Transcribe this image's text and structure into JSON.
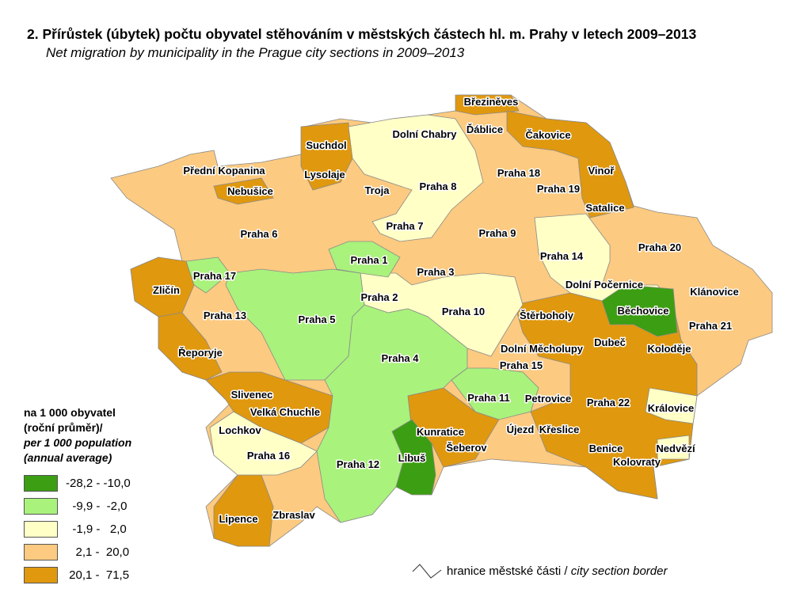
{
  "title": "2. Přírůstek (úbytek) počtu obyvatel stěhováním v městských částech hl. m. Prahy v letech 2009–2013",
  "subtitle": "Net migration by municipality in the Prague city sections in 2009–2013",
  "legend": {
    "heading_cz": "na 1 000 obyvatel",
    "heading_cz2": "(roční průměr)/",
    "heading_en": "per 1 000 population",
    "heading_en2": "(annual average)",
    "classes": [
      {
        "range": "-28,2 - -10,0",
        "color": "#3c9e12"
      },
      {
        "range": "  -9,9 -  -2,0",
        "color": "#a9f27c"
      },
      {
        "range": "  -1,9 -   2,0",
        "color": "#ffffc6"
      },
      {
        "range": "   2,1 -  20,0",
        "color": "#fcca80"
      },
      {
        "range": " 20,1 -  71,5",
        "color": "#e0980e"
      }
    ],
    "border_cz": "hranice městské části",
    "border_sep": " / ",
    "border_en": "city section border"
  },
  "districts": [
    {
      "name": "Březiněves",
      "class": 4
    },
    {
      "name": "Dolní Chabry",
      "class": 2
    },
    {
      "name": "Ďáblice",
      "class": 3
    },
    {
      "name": "Čakovice",
      "class": 4
    },
    {
      "name": "Suchdol",
      "class": 4
    },
    {
      "name": "Lysolaje",
      "class": 4
    },
    {
      "name": "Přední Kopanina",
      "class": 3
    },
    {
      "name": "Nebušice",
      "class": 4
    },
    {
      "name": "Troja",
      "class": 3
    },
    {
      "name": "Praha 8",
      "class": 2
    },
    {
      "name": "Praha 18",
      "class": 3
    },
    {
      "name": "Praha 19",
      "class": 3
    },
    {
      "name": "Vinoř",
      "class": 4
    },
    {
      "name": "Satalice",
      "class": 4
    },
    {
      "name": "Praha 6",
      "class": 3
    },
    {
      "name": "Praha 7",
      "class": 3
    },
    {
      "name": "Praha 9",
      "class": 3
    },
    {
      "name": "Praha 14",
      "class": 2
    },
    {
      "name": "Praha 20",
      "class": 3
    },
    {
      "name": "Praha 1",
      "class": 1
    },
    {
      "name": "Praha 3",
      "class": 3
    },
    {
      "name": "Praha 17",
      "class": 1
    },
    {
      "name": "Zličín",
      "class": 4
    },
    {
      "name": "Praha 2",
      "class": 2
    },
    {
      "name": "Praha 10",
      "class": 2
    },
    {
      "name": "Dolní Počernice",
      "class": 2
    },
    {
      "name": "Klánovice",
      "class": 3
    },
    {
      "name": "Běchovice",
      "class": 0
    },
    {
      "name": "Praha 21",
      "class": 3
    },
    {
      "name": "Štěrboholy",
      "class": 4
    },
    {
      "name": "Praha 13",
      "class": 3
    },
    {
      "name": "Praha 5",
      "class": 1
    },
    {
      "name": "Praha 4",
      "class": 1
    },
    {
      "name": "Dolní Měcholupy",
      "class": 4
    },
    {
      "name": "Dubeč",
      "class": 4
    },
    {
      "name": "Koloděje",
      "class": 4
    },
    {
      "name": "Řeporyje",
      "class": 4
    },
    {
      "name": "Praha 15",
      "class": 3
    },
    {
      "name": "Praha 11",
      "class": 1
    },
    {
      "name": "Petrovice",
      "class": 3
    },
    {
      "name": "Praha 22",
      "class": 4
    },
    {
      "name": "Královice",
      "class": 2
    },
    {
      "name": "Slivenec",
      "class": 4
    },
    {
      "name": "Velká Chuchle",
      "class": 4
    },
    {
      "name": "Lochkov",
      "class": 3
    },
    {
      "name": "Kunratice",
      "class": 4
    },
    {
      "name": "Újezd",
      "class": 3
    },
    {
      "name": "Křeslice",
      "class": 3
    },
    {
      "name": "Libuš",
      "class": 0
    },
    {
      "name": "Šeberov",
      "class": 3
    },
    {
      "name": "Benice",
      "class": 4
    },
    {
      "name": "Nedvězí",
      "class": 2
    },
    {
      "name": "Kolovraty",
      "class": 4
    },
    {
      "name": "Praha 16",
      "class": 2
    },
    {
      "name": "Praha 12",
      "class": 1
    },
    {
      "name": "Lipence",
      "class": 4
    },
    {
      "name": "Zbraslav",
      "class": 3
    }
  ]
}
